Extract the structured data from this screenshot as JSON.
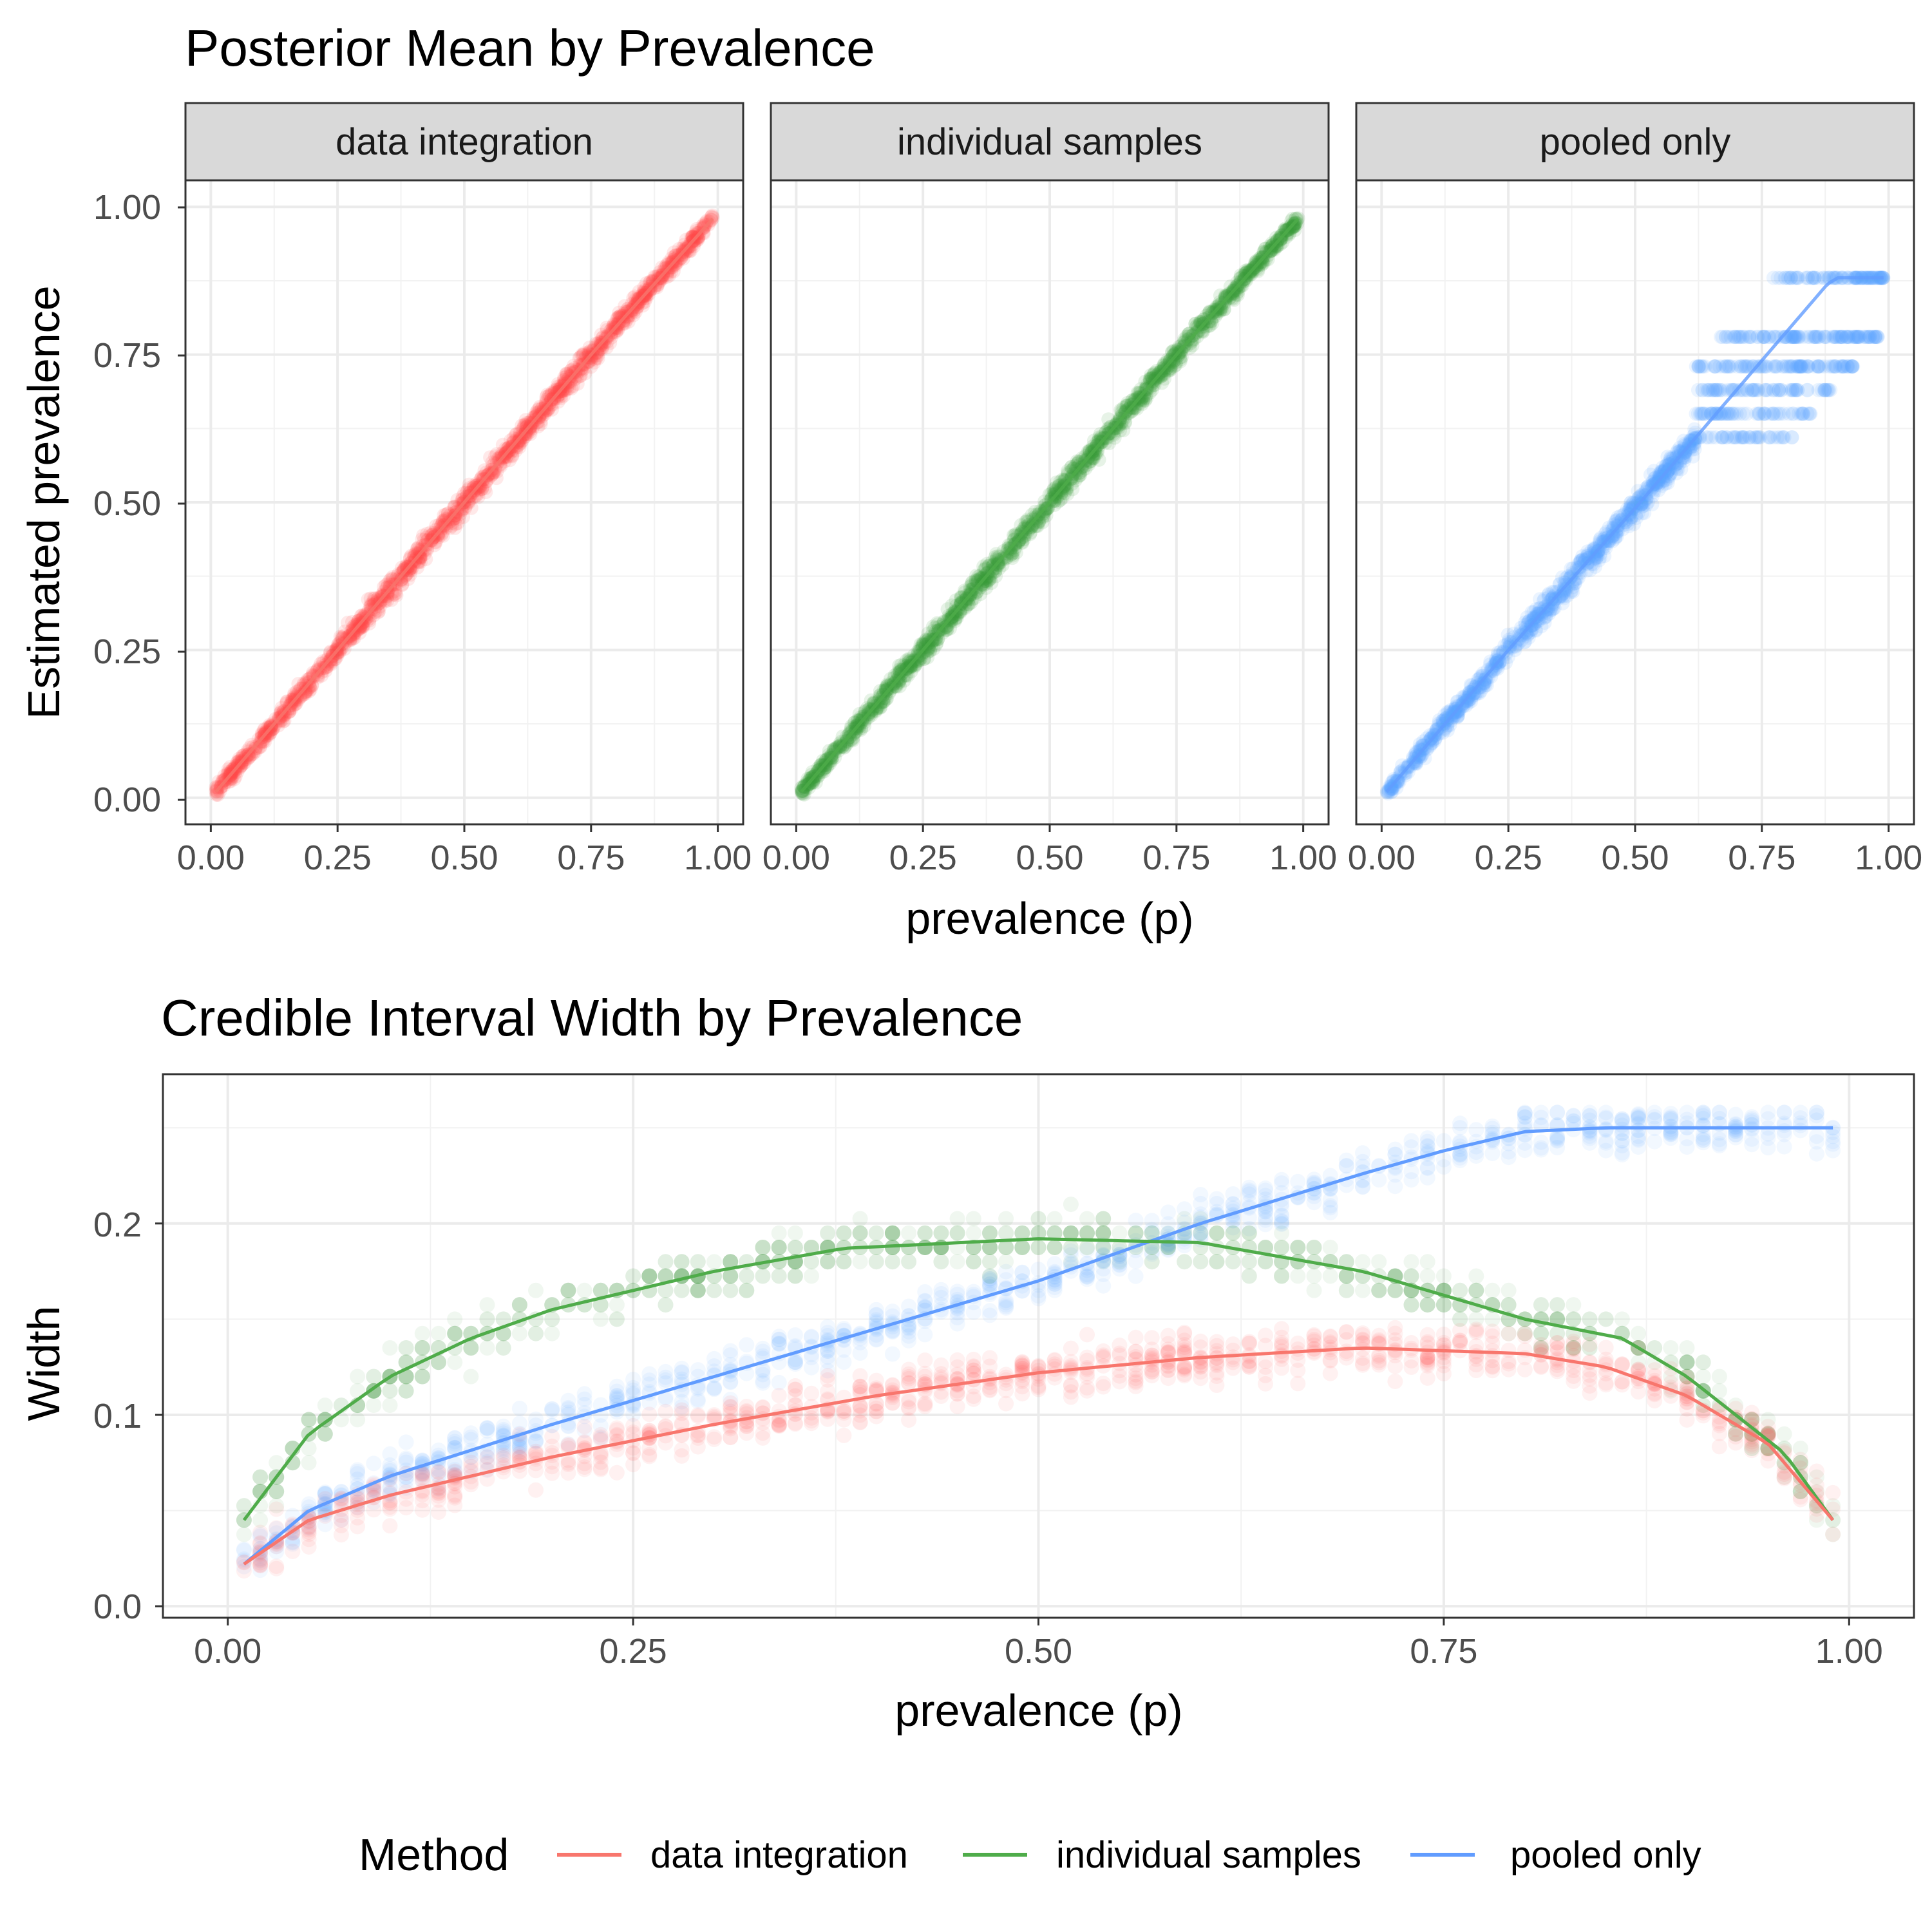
{
  "colors": {
    "data_integration": "#f8766d",
    "individual_samples": "#4fac4a",
    "pooled_only": "#619cff",
    "data_integration_points": "#ff4d4d",
    "individual_samples_points": "#3a9a3a",
    "pooled_only_points": "#5aa7ff"
  },
  "chart_data": [
    {
      "type": "scatter",
      "title": "Posterior Mean by Prevalence",
      "xlabel": "prevalence (p)",
      "ylabel": "Estimated prevalence",
      "xlim": [
        0,
        1
      ],
      "ylim": [
        0,
        1
      ],
      "x_ticks": [
        "0.00",
        "0.25",
        "0.50",
        "0.75",
        "1.00"
      ],
      "y_ticks": [
        "0.00",
        "0.25",
        "0.50",
        "0.75",
        "1.00"
      ],
      "grid": true,
      "facets": [
        "data integration",
        "individual samples",
        "pooled only"
      ],
      "series": [
        {
          "name": "data integration",
          "x": [
            0.01,
            0.25,
            0.5,
            0.75,
            0.99
          ],
          "y": [
            0.01,
            0.25,
            0.5,
            0.75,
            0.98
          ]
        },
        {
          "name": "individual samples",
          "x": [
            0.01,
            0.25,
            0.5,
            0.75,
            0.99
          ],
          "y": [
            0.01,
            0.25,
            0.5,
            0.75,
            0.98
          ]
        },
        {
          "name": "pooled only",
          "x": [
            0.01,
            0.25,
            0.5,
            0.6,
            0.7,
            0.75,
            0.8,
            0.85,
            0.88,
            0.9,
            0.99
          ],
          "y": [
            0.01,
            0.25,
            0.49,
            0.59,
            0.69,
            0.74,
            0.79,
            0.84,
            0.87,
            0.88,
            0.88
          ]
        }
      ]
    },
    {
      "type": "line",
      "title": "Credible Interval Width by Prevalence",
      "xlabel": "prevalence (p)",
      "ylabel": "Width",
      "xlim": [
        -0.04,
        1.04
      ],
      "ylim": [
        -0.006,
        0.278
      ],
      "x_ticks": [
        "0.00",
        "0.25",
        "0.50",
        "0.75",
        "1.00"
      ],
      "y_ticks": [
        "0.0",
        "0.1",
        "0.2"
      ],
      "grid": true,
      "series": [
        {
          "name": "data integration",
          "x": [
            0.01,
            0.05,
            0.1,
            0.2,
            0.3,
            0.4,
            0.5,
            0.6,
            0.7,
            0.8,
            0.85,
            0.9,
            0.95,
            0.99
          ],
          "y": [
            0.022,
            0.045,
            0.058,
            0.078,
            0.095,
            0.11,
            0.122,
            0.13,
            0.135,
            0.132,
            0.125,
            0.11,
            0.085,
            0.045
          ]
        },
        {
          "name": "individual samples",
          "x": [
            0.01,
            0.05,
            0.1,
            0.15,
            0.2,
            0.3,
            0.38,
            0.5,
            0.6,
            0.7,
            0.8,
            0.86,
            0.9,
            0.93,
            0.96,
            0.99
          ],
          "y": [
            0.045,
            0.09,
            0.12,
            0.14,
            0.155,
            0.175,
            0.187,
            0.192,
            0.19,
            0.175,
            0.15,
            0.14,
            0.12,
            0.1,
            0.08,
            0.045
          ]
        },
        {
          "name": "pooled only",
          "x": [
            0.01,
            0.05,
            0.1,
            0.2,
            0.3,
            0.4,
            0.5,
            0.6,
            0.65,
            0.7,
            0.75,
            0.8,
            0.85,
            0.9,
            0.99
          ],
          "y": [
            0.022,
            0.05,
            0.068,
            0.095,
            0.12,
            0.145,
            0.17,
            0.2,
            0.213,
            0.226,
            0.238,
            0.248,
            0.25,
            0.25,
            0.25
          ]
        }
      ]
    }
  ],
  "legend": {
    "title": "Method",
    "items": [
      "data integration",
      "individual samples",
      "pooled only"
    ]
  }
}
